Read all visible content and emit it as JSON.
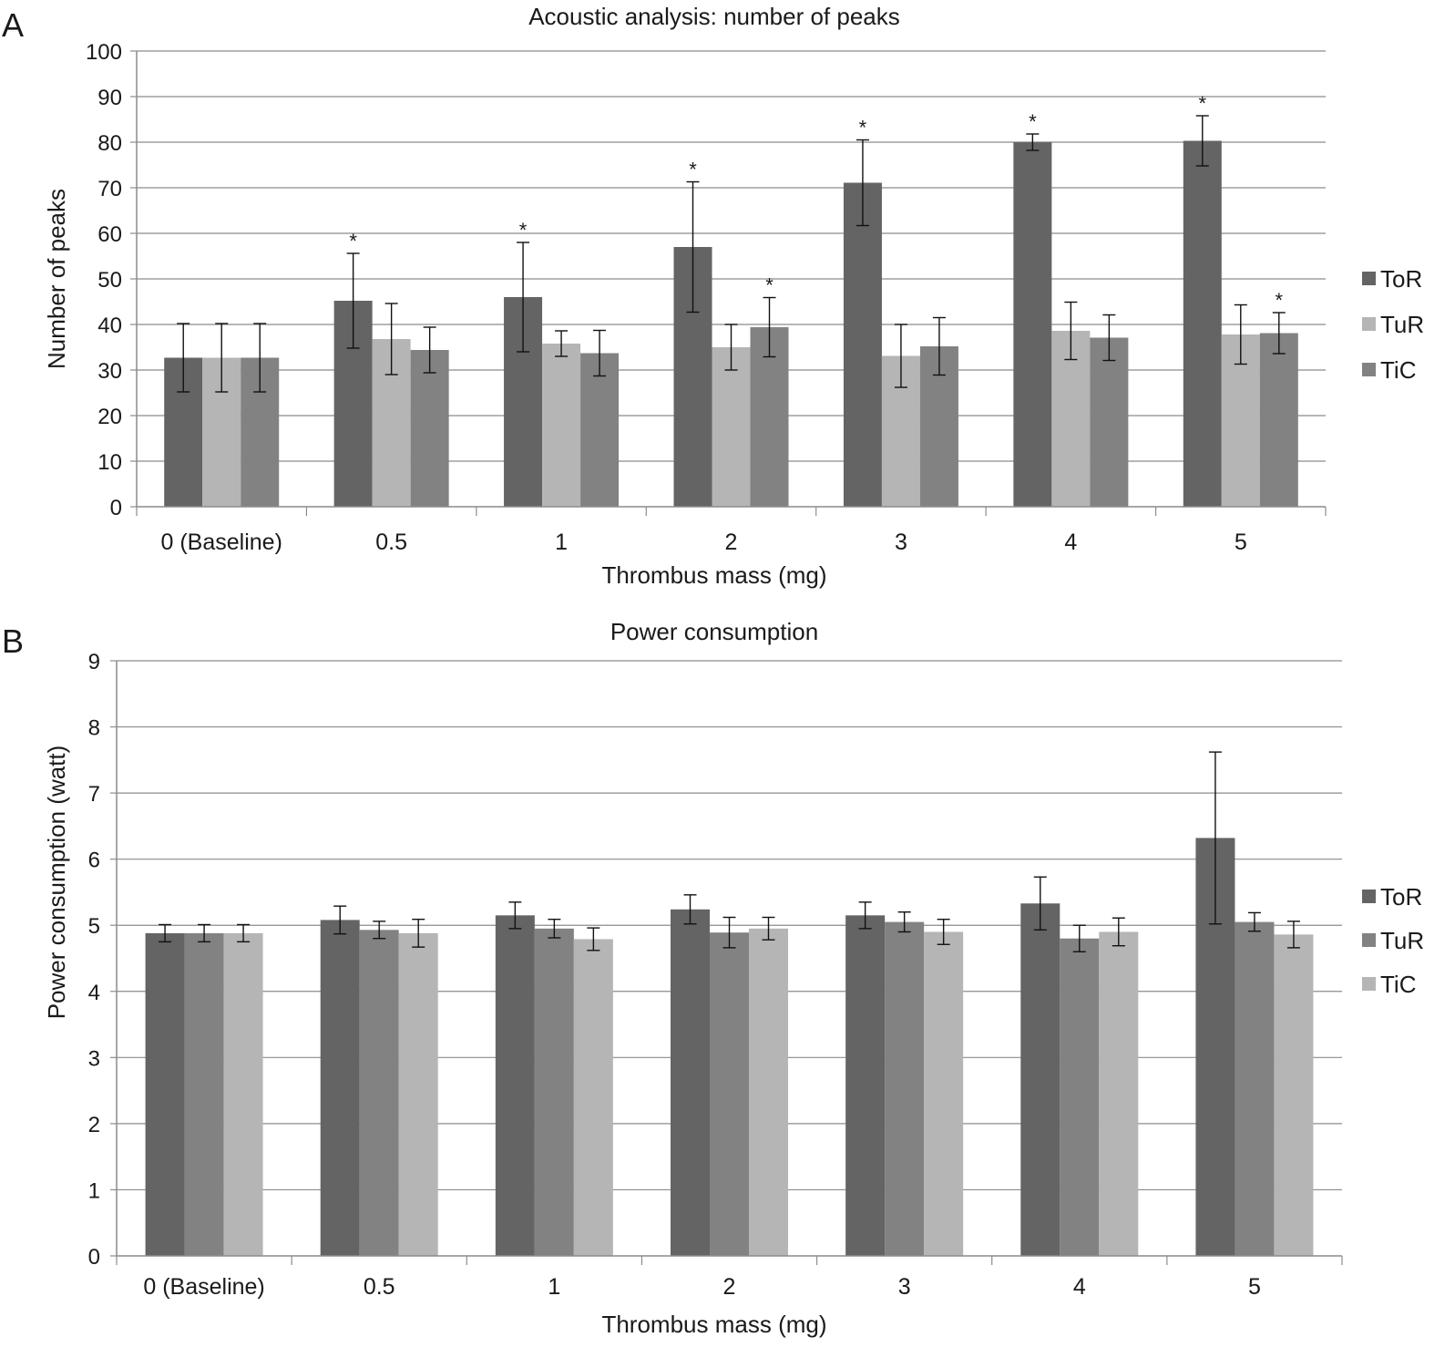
{
  "chart_data": [
    {
      "type": "bar",
      "panel": "A",
      "title": "Acoustic analysis: number of peaks",
      "xlabel": "Thrombus mass (mg)",
      "ylabel": "Number of peaks",
      "categories": [
        "0 (Baseline)",
        "0.5",
        "1",
        "2",
        "3",
        "4",
        "5"
      ],
      "ylim": [
        0,
        100
      ],
      "yticks": [
        0,
        10,
        20,
        30,
        40,
        50,
        60,
        70,
        80,
        90,
        100
      ],
      "grid": true,
      "legend_position": "right",
      "series": [
        {
          "name": "ToR",
          "color": "#646464",
          "values": [
            32.7,
            45.2,
            46.0,
            57.0,
            71.1,
            80.0,
            80.3
          ],
          "error": [
            7.5,
            10.4,
            12.0,
            14.3,
            9.4,
            1.8,
            5.5
          ],
          "significant": [
            false,
            true,
            true,
            true,
            true,
            true,
            true
          ]
        },
        {
          "name": "TuR",
          "color": "#b4b5b4",
          "values": [
            32.7,
            36.8,
            35.8,
            35.0,
            33.1,
            38.6,
            37.8
          ],
          "error": [
            7.5,
            7.8,
            2.8,
            5.0,
            6.9,
            6.3,
            6.5
          ],
          "significant": [
            false,
            false,
            false,
            false,
            false,
            false,
            false
          ]
        },
        {
          "name": "TiC",
          "color": "#828282",
          "values": [
            32.7,
            34.4,
            33.7,
            39.4,
            35.2,
            37.1,
            38.1
          ],
          "error": [
            7.5,
            5.0,
            5.0,
            6.5,
            6.3,
            5.0,
            4.5
          ],
          "significant": [
            false,
            false,
            false,
            true,
            false,
            false,
            true
          ]
        }
      ],
      "annotation_symbol": "*"
    },
    {
      "type": "bar",
      "panel": "B",
      "title": "Power consumption",
      "xlabel": "Thrombus mass (mg)",
      "ylabel": "Power consumption (watt)",
      "categories": [
        "0 (Baseline)",
        "0.5",
        "1",
        "2",
        "3",
        "4",
        "5"
      ],
      "ylim": [
        0,
        9
      ],
      "yticks": [
        0,
        1,
        2,
        3,
        4,
        5,
        6,
        7,
        8,
        9
      ],
      "grid": true,
      "legend_position": "right",
      "series": [
        {
          "name": "ToR",
          "color": "#646464",
          "values": [
            4.88,
            5.08,
            5.15,
            5.24,
            5.15,
            5.33,
            6.32
          ],
          "error": [
            0.13,
            0.21,
            0.2,
            0.22,
            0.2,
            0.4,
            1.3
          ]
        },
        {
          "name": "TuR",
          "color": "#828282",
          "values": [
            4.88,
            4.93,
            4.95,
            4.89,
            5.05,
            4.8,
            5.05
          ],
          "error": [
            0.13,
            0.13,
            0.14,
            0.23,
            0.15,
            0.2,
            0.14
          ]
        },
        {
          "name": "TiC",
          "color": "#b4b5b4",
          "values": [
            4.88,
            4.88,
            4.79,
            4.95,
            4.9,
            4.9,
            4.86
          ],
          "error": [
            0.13,
            0.21,
            0.17,
            0.17,
            0.19,
            0.21,
            0.2
          ]
        }
      ]
    }
  ]
}
